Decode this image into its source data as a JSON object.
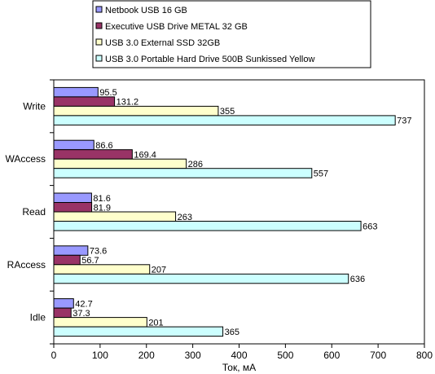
{
  "chart_data": {
    "type": "bar",
    "orientation": "horizontal",
    "categories": [
      "Write",
      "WAccess",
      "Read",
      "RAccess",
      "Idle"
    ],
    "series": [
      {
        "name": "Netbook USB 16 GB",
        "color": "#9999ff",
        "values": [
          95.5,
          86.6,
          81.6,
          73.6,
          42.7
        ]
      },
      {
        "name": "Executive USB Drive METAL 32 GB",
        "color": "#993366",
        "values": [
          131.2,
          169.4,
          81.9,
          56.7,
          37.3
        ]
      },
      {
        "name": "USB 3.0 External SSD 32GB",
        "color": "#ffffcc",
        "values": [
          355,
          286,
          263,
          207,
          201
        ]
      },
      {
        "name": "USB 3.0 Portable Hard Drive 500B Sunkissed Yellow",
        "color": "#ccffff",
        "values": [
          737,
          557,
          663,
          636,
          365
        ]
      }
    ],
    "xlabel": "Ток, мА",
    "ylabel": "",
    "xlim": [
      0,
      800
    ],
    "xticks": [
      0,
      100,
      200,
      300,
      400,
      500,
      600,
      700,
      800
    ],
    "value_labels": [
      [
        "95.5",
        "86.6",
        "81.6",
        "73.6",
        "42.7"
      ],
      [
        "131.2",
        "169.4",
        "81.9",
        "56.7",
        "37.3"
      ],
      [
        "355",
        "286",
        "263",
        "207",
        "201"
      ],
      [
        "737",
        "557",
        "663",
        "636",
        "365"
      ]
    ],
    "legend_position": "top",
    "grid": false
  }
}
